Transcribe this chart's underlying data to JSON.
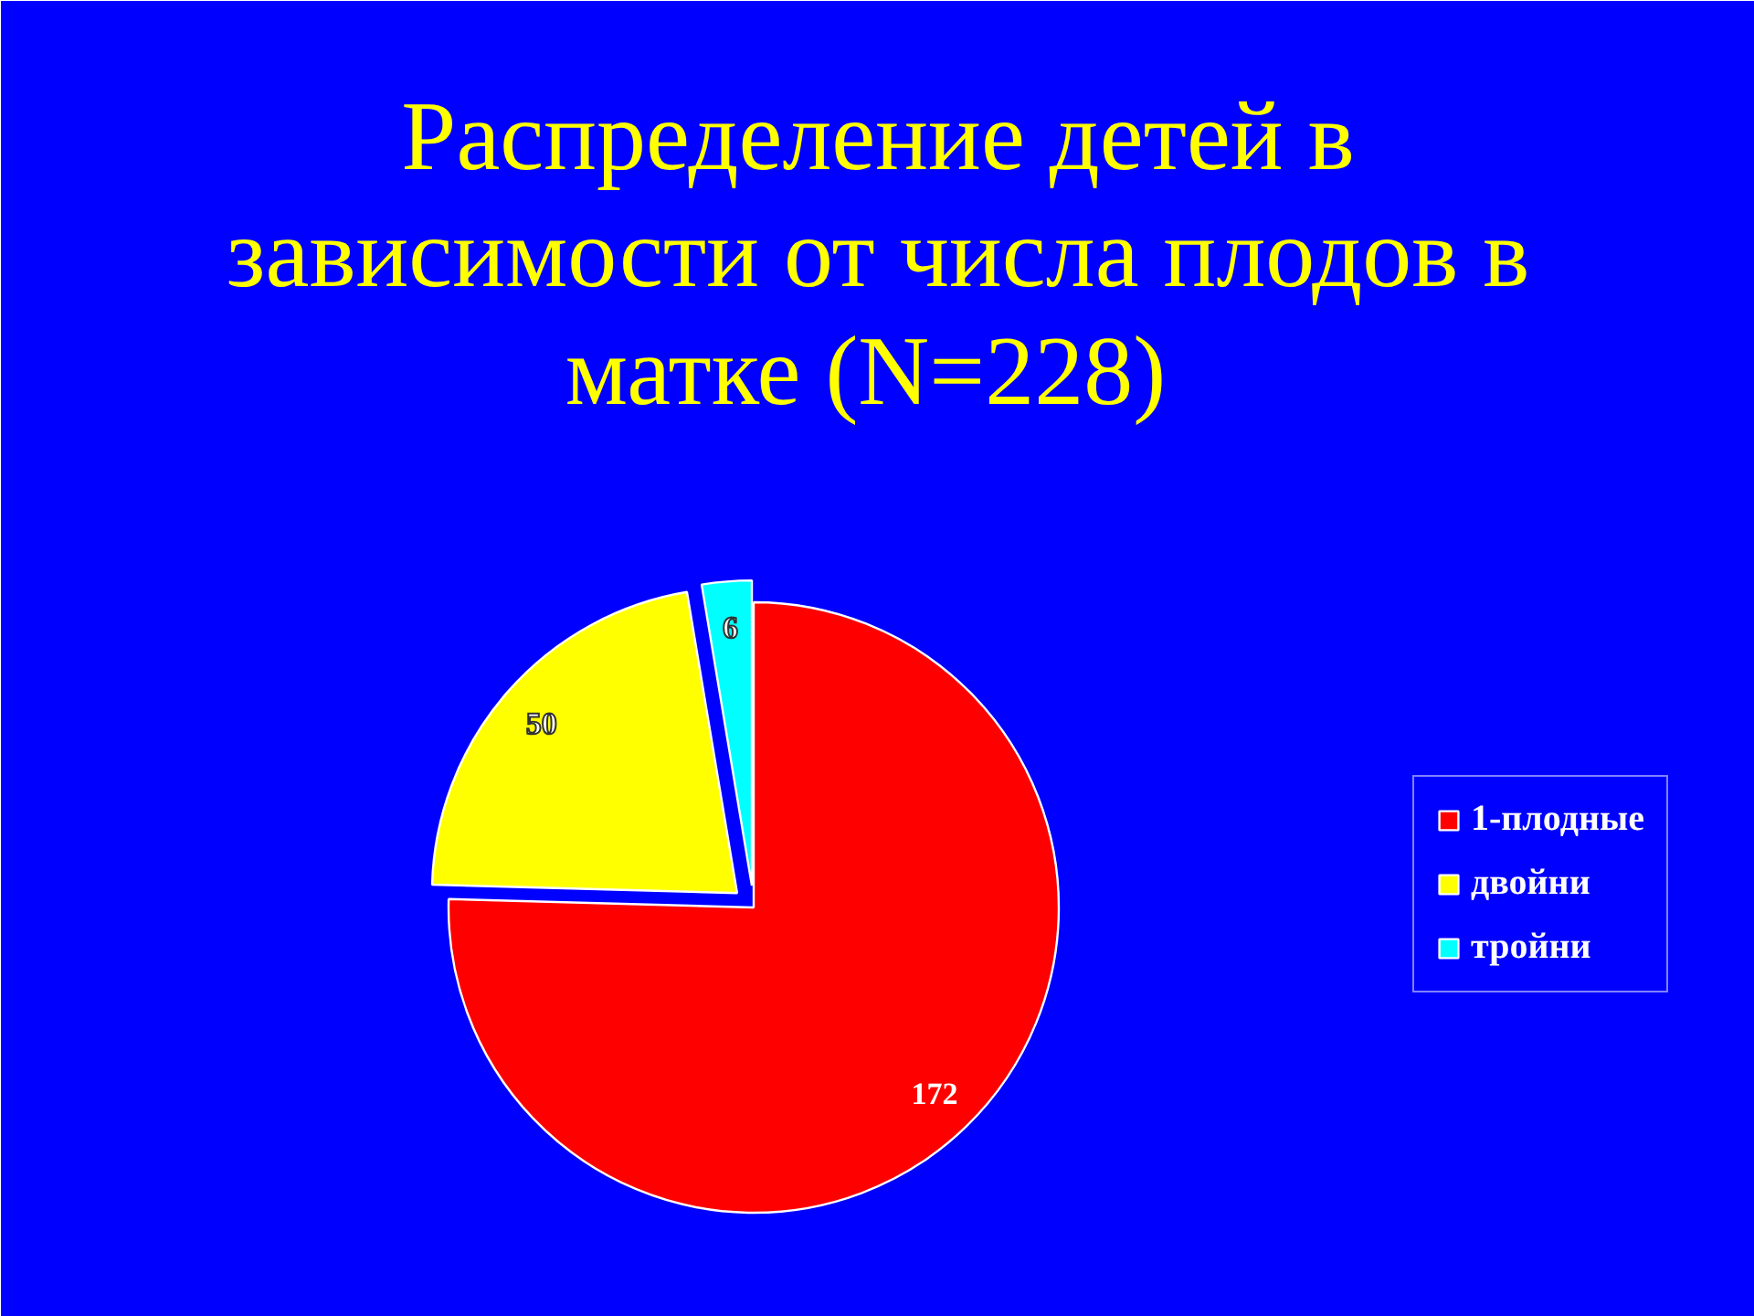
{
  "chart_data": {
    "type": "pie",
    "title": "Распределение детей в зависимости от числа плодов в матке  (N=228)",
    "categories": [
      "1-плодные",
      "двойни",
      "тройни"
    ],
    "values": [
      172,
      50,
      6
    ],
    "colors": [
      "#ff0000",
      "#ffff00",
      "#00ffff"
    ],
    "data_labels": true,
    "legend": "right"
  }
}
